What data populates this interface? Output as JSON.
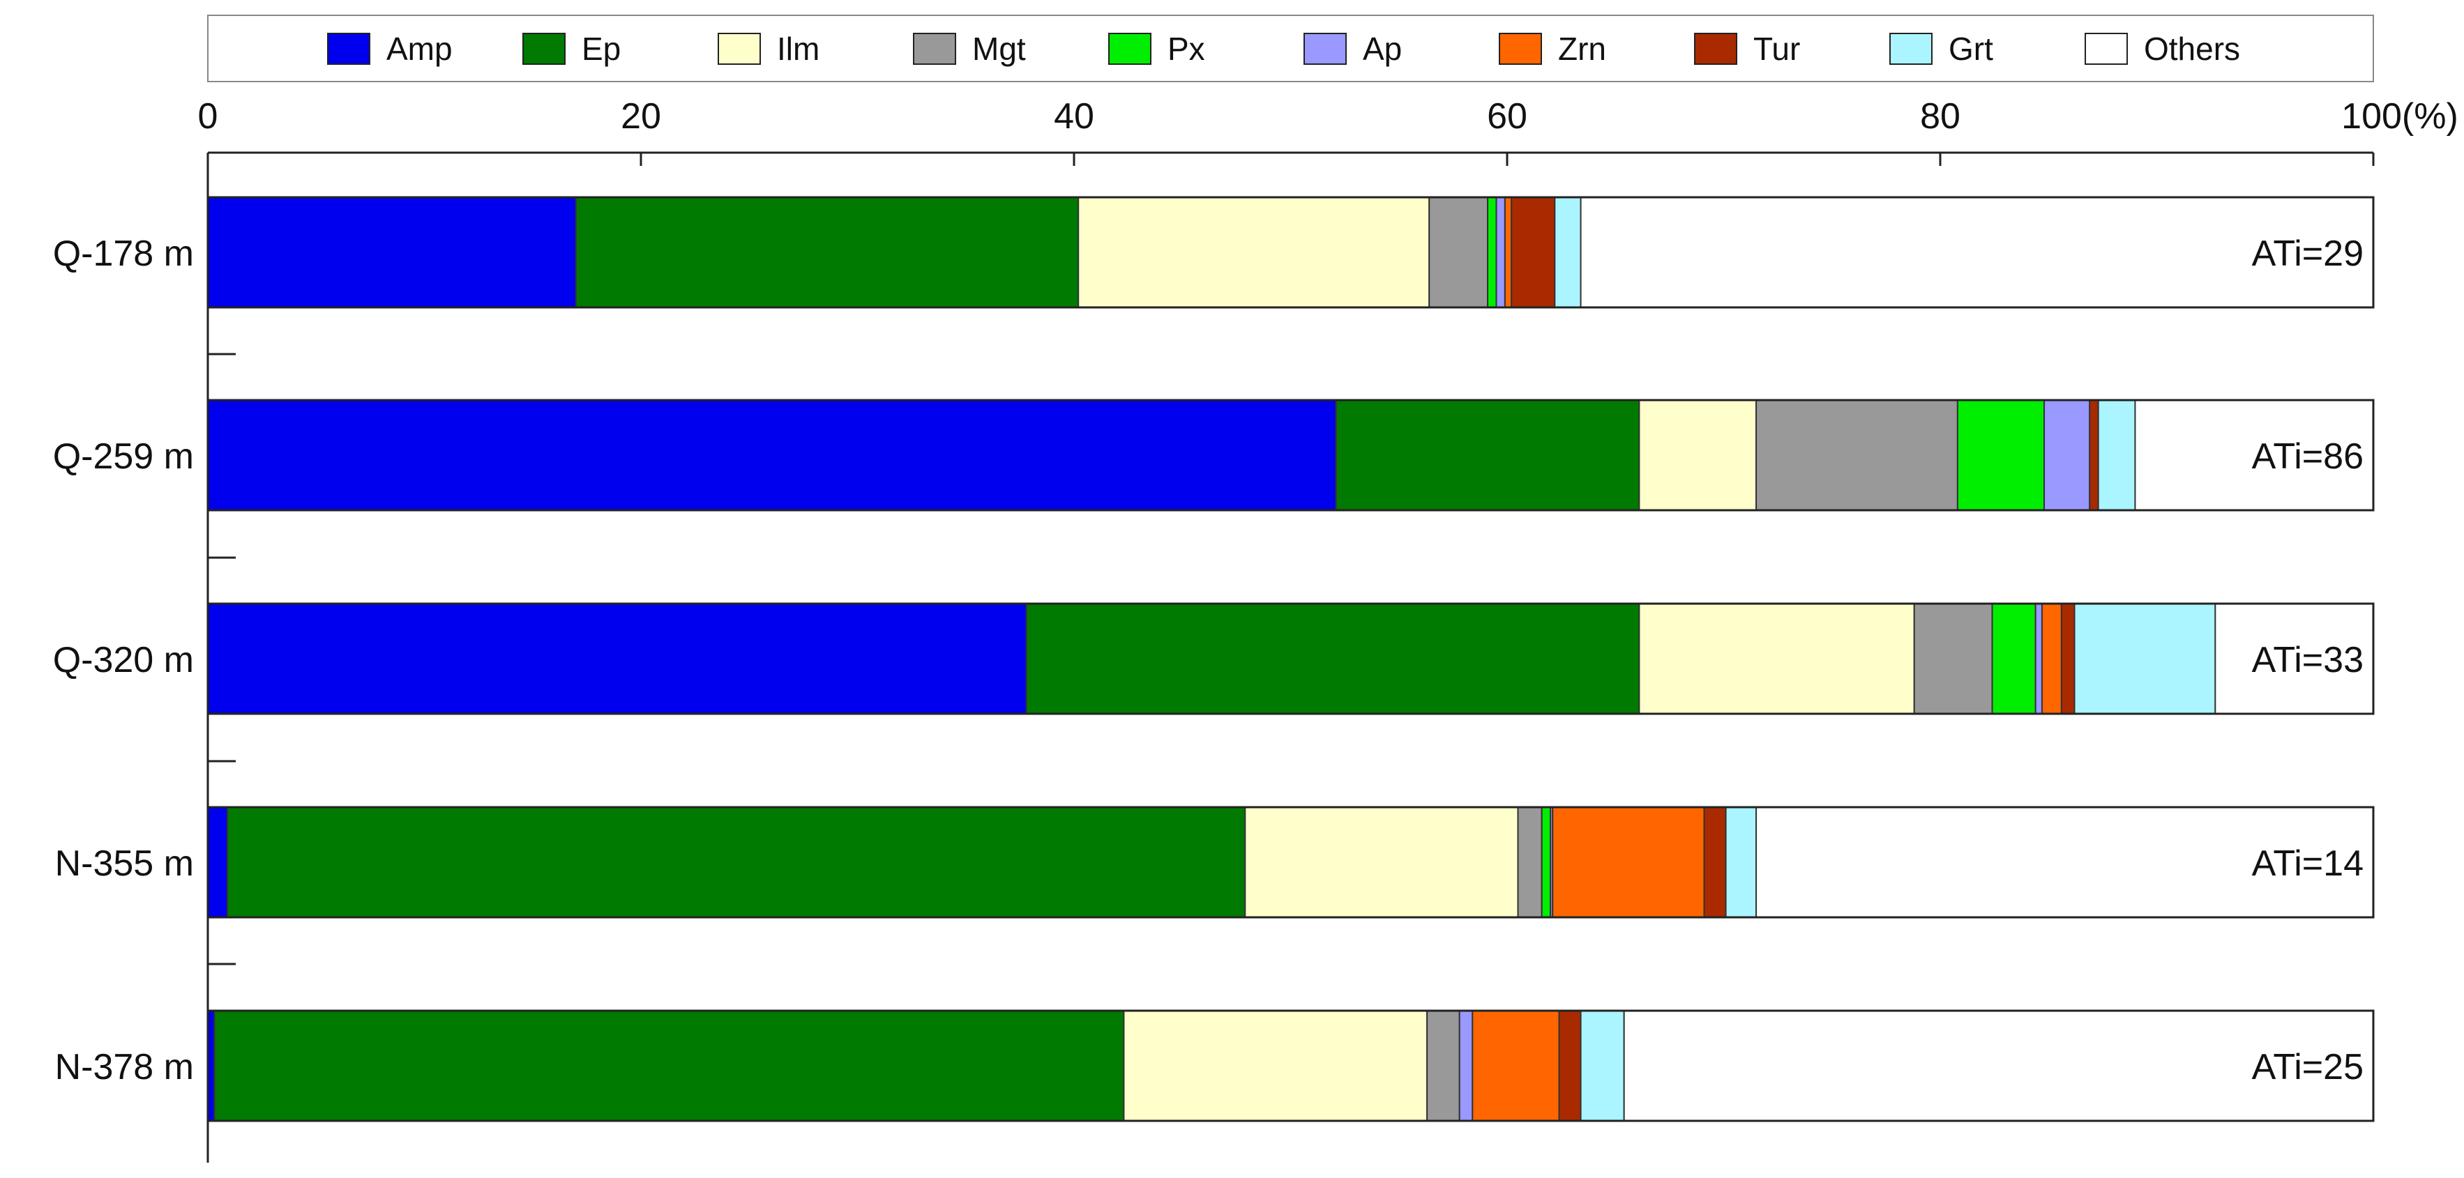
{
  "chart_data": {
    "type": "bar",
    "orientation": "horizontal",
    "stacked": true,
    "xlim": [
      0,
      100
    ],
    "x_ticks": [
      0,
      20,
      40,
      60,
      80,
      100
    ],
    "x_tick_labels": [
      "0",
      "20",
      "40",
      "60",
      "80",
      "100(%)"
    ],
    "grid": false,
    "legend_position": "top",
    "categories": [
      "Q-178 m",
      "Q-259 m",
      "Q-320 m",
      "N-355 m",
      "N-378 m"
    ],
    "annotations": [
      "ATi=29",
      "ATi=86",
      "ATi=33",
      "ATi=14",
      "ATi=25"
    ],
    "series": [
      {
        "name": "Amp",
        "color": "#0000ee",
        "values": [
          17.0,
          52.1,
          37.8,
          0.9,
          0.3
        ]
      },
      {
        "name": "Ep",
        "color": "#007a00",
        "values": [
          23.2,
          14.0,
          28.3,
          47.0,
          42.0
        ]
      },
      {
        "name": "Ilm",
        "color": "#ffffcc",
        "values": [
          16.2,
          5.4,
          12.7,
          12.6,
          14.0
        ]
      },
      {
        "name": "Mgt",
        "color": "#999999",
        "values": [
          2.7,
          9.3,
          3.6,
          1.1,
          1.5
        ]
      },
      {
        "name": "Px",
        "color": "#00ee00",
        "values": [
          0.4,
          4.0,
          2.0,
          0.4,
          0.0
        ]
      },
      {
        "name": "Ap",
        "color": "#9999ff",
        "values": [
          0.4,
          2.1,
          0.3,
          0.1,
          0.6
        ]
      },
      {
        "name": "Zrn",
        "color": "#ff6600",
        "values": [
          0.3,
          0.0,
          0.9,
          7.0,
          4.0
        ]
      },
      {
        "name": "Tur",
        "color": "#aa2a00",
        "values": [
          2.0,
          0.4,
          0.6,
          1.0,
          1.0
        ]
      },
      {
        "name": "Grt",
        "color": "#aaf5ff",
        "values": [
          1.2,
          1.7,
          6.5,
          1.4,
          2.0
        ]
      },
      {
        "name": "Others",
        "color": "#ffffff",
        "values": [
          36.6,
          11.0,
          7.3,
          28.5,
          34.6
        ]
      }
    ]
  }
}
